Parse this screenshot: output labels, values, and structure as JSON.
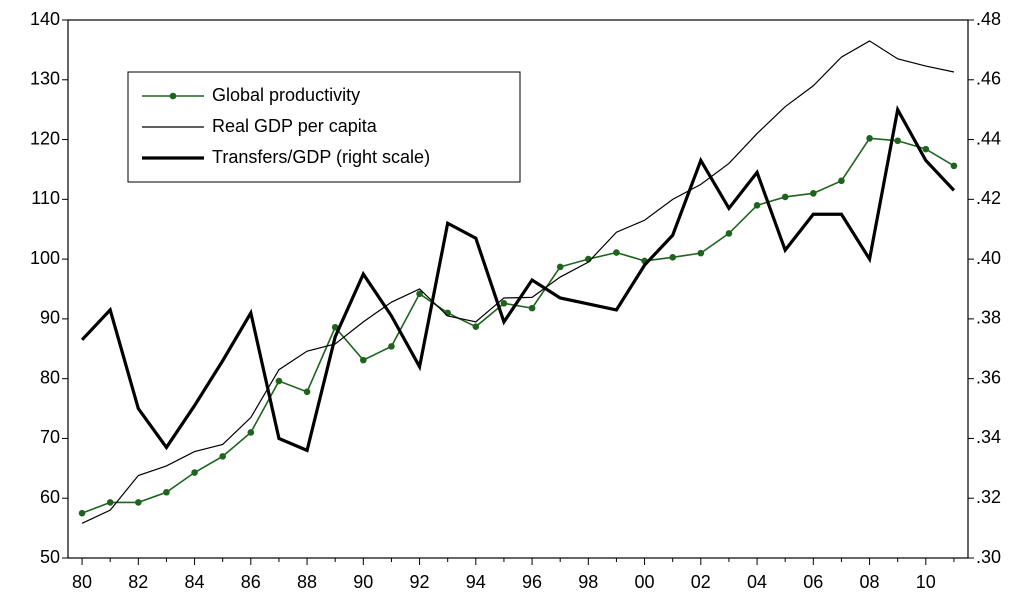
{
  "chart_data": {
    "type": "line",
    "categories": [
      "80",
      null,
      "82",
      null,
      "84",
      null,
      "86",
      null,
      "88",
      null,
      "90",
      null,
      "92",
      null,
      "94",
      null,
      "96",
      null,
      "98",
      null,
      "00",
      null,
      "02",
      null,
      "04",
      null,
      "06",
      null,
      "08",
      null,
      "10",
      null
    ],
    "series": [
      {
        "name": "Global productivity",
        "color": "#1e641e",
        "line_width": 1.6,
        "marker": "circle",
        "values": [
          57.5,
          59.3,
          59.3,
          61,
          64.3,
          67,
          71,
          79.6,
          77.8,
          88.6,
          83.1,
          85.4,
          94.2,
          91,
          88.7,
          92.6,
          91.8,
          98.7,
          100,
          101.1,
          99.7,
          100.3,
          101,
          104.3,
          109,
          110.4,
          111,
          113.1,
          120.2,
          119.8,
          118.4,
          115.6
        ]
      },
      {
        "name": "Real GDP per capita",
        "color": "#000000",
        "line_width": 1.2,
        "values": [
          55.8,
          58,
          63.8,
          65.4,
          67.8,
          69,
          73.5,
          81.5,
          84.6,
          85.8,
          89.5,
          92.8,
          95,
          90.5,
          89.5,
          93.5,
          93.6,
          97,
          99.5,
          104.5,
          106.5,
          110,
          112.5,
          116,
          121,
          125.5,
          129,
          133.8,
          136.5,
          133.5,
          132.3,
          131.3
        ]
      },
      {
        "name": "Transfers/GDP (right scale)",
        "color": "#000000",
        "line_width": 3.2,
        "axis": "y2",
        "values": [
          0.373,
          0.383,
          0.35,
          0.337,
          0.351,
          0.366,
          0.382,
          0.34,
          0.336,
          0.374,
          0.395,
          0.381,
          0.364,
          0.412,
          0.407,
          0.379,
          0.393,
          0.387,
          0.385,
          0.383,
          0.398,
          0.408,
          0.433,
          0.417,
          0.429,
          0.403,
          0.415,
          0.415,
          0.4,
          0.45,
          0.433,
          0.423
        ]
      }
    ],
    "ylim": [
      50,
      140
    ],
    "yticks": [
      50,
      60,
      70,
      80,
      90,
      100,
      110,
      120,
      130,
      140
    ],
    "y2lim": [
      0.3,
      0.48
    ],
    "y2ticks": [
      {
        "value": 0.3,
        "label": ".30"
      },
      {
        "value": 0.32,
        "label": ".32"
      },
      {
        "value": 0.34,
        "label": ".34"
      },
      {
        "value": 0.36,
        "label": ".36"
      },
      {
        "value": 0.38,
        "label": ".38"
      },
      {
        "value": 0.4,
        "label": ".40"
      },
      {
        "value": 0.42,
        "label": ".42"
      },
      {
        "value": 0.44,
        "label": ".44"
      },
      {
        "value": 0.46,
        "label": ".46"
      },
      {
        "value": 0.48,
        "label": ".48"
      }
    ],
    "legend": "upper left",
    "grid": false
  }
}
